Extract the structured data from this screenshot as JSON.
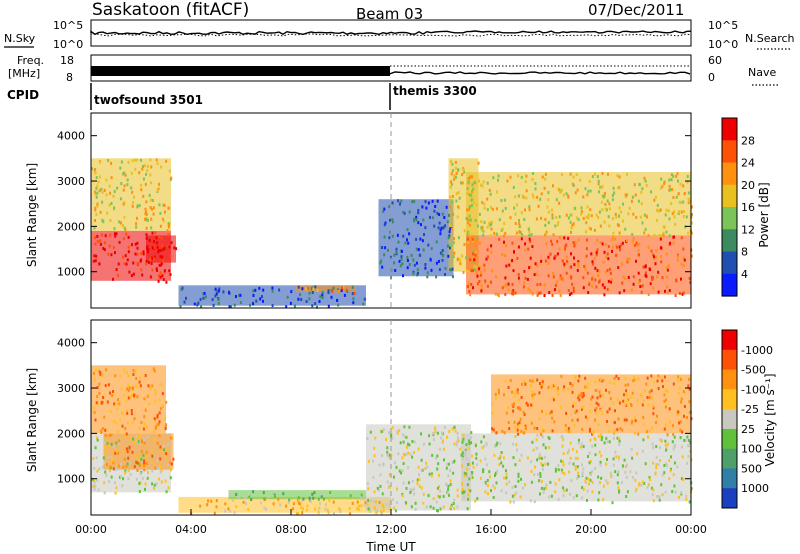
{
  "header": {
    "station": "Saskatoon (fitACF)",
    "beam": "Beam 03",
    "date": "07/Dec/2011"
  },
  "nsky_panel": {
    "left_label": "N.Sky",
    "right_label": "N.Search",
    "left_ticks": [
      "10^5",
      "10^0"
    ],
    "right_ticks": [
      "10^5",
      "10^0"
    ]
  },
  "freq_panel": {
    "left_label_1": "Freq.",
    "left_label_2": "[MHz]",
    "right_label": "Nave",
    "left_ticks": [
      "18",
      "8"
    ],
    "right_ticks": [
      "60",
      "0"
    ]
  },
  "cpid": {
    "label": "CPID",
    "modes": [
      {
        "name": "twofsound 3501",
        "start_hour": 0
      },
      {
        "name": "themis 3300",
        "start_hour": 12
      }
    ]
  },
  "chart_data": [
    {
      "type": "heatmap",
      "id": "power",
      "ylabel": "Slant Range [km]",
      "xlabel": "",
      "xlim": [
        0,
        24
      ],
      "ylim": [
        200,
        4500
      ],
      "y_ticks": [
        1000,
        2000,
        3000,
        4000
      ],
      "colorbar_label": "Power [dB]",
      "colorbar_ticks": [
        "4",
        "8",
        "12",
        "16",
        "20",
        "24",
        "28"
      ],
      "colorbar_colors": [
        "#0a1cff",
        "#1f4fb0",
        "#3c8a60",
        "#7cc45a",
        "#e8c020",
        "#ff9010",
        "#ff5008",
        "#ee0000"
      ],
      "regions": [
        {
          "x": [
            0.0,
            3.2
          ],
          "y": [
            800,
            1900
          ],
          "level": 7
        },
        {
          "x": [
            0.0,
            3.2
          ],
          "y": [
            1900,
            3500
          ],
          "level": 4
        },
        {
          "x": [
            2.2,
            3.4
          ],
          "y": [
            1200,
            1800
          ],
          "level": 7
        },
        {
          "x": [
            3.5,
            11.0
          ],
          "y": [
            250,
            700
          ],
          "level": 1
        },
        {
          "x": [
            8.2,
            10.6
          ],
          "y": [
            550,
            700
          ],
          "level": 5
        },
        {
          "x": [
            11.5,
            14.5
          ],
          "y": [
            900,
            2600
          ],
          "level": 1
        },
        {
          "x": [
            14.3,
            15.5
          ],
          "y": [
            1000,
            3500
          ],
          "level": 4
        },
        {
          "x": [
            15.0,
            24.0
          ],
          "y": [
            500,
            1800
          ],
          "level": 6
        },
        {
          "x": [
            15.0,
            24.0
          ],
          "y": [
            1800,
            3200
          ],
          "level": 4
        }
      ]
    },
    {
      "type": "heatmap",
      "id": "velocity",
      "ylabel": "Slant Range [km]",
      "xlabel": "Time UT",
      "xlim": [
        0,
        24
      ],
      "ylim": [
        200,
        4500
      ],
      "y_ticks": [
        1000,
        2000,
        3000,
        4000
      ],
      "x_ticks": [
        "00:00",
        "04:00",
        "08:00",
        "12:00",
        "16:00",
        "20:00",
        "00:00"
      ],
      "colorbar_label": "Velocity [m s⁻¹]",
      "colorbar_ticks": [
        "1000",
        "500",
        "100",
        "25",
        "-25",
        "-100",
        "-500",
        "-1000"
      ],
      "colorbar_colors": [
        "#1a3fc0",
        "#2f7fa8",
        "#4f9f6a",
        "#5fc23a",
        "#c8c8c0",
        "#ffc020",
        "#ff9010",
        "#ff5008",
        "#ee0000"
      ],
      "regions": [
        {
          "x": [
            0.0,
            3.2
          ],
          "y": [
            700,
            2000
          ],
          "level": 4
        },
        {
          "x": [
            0.5,
            3.3
          ],
          "y": [
            1200,
            2000
          ],
          "level": 6
        },
        {
          "x": [
            0.0,
            3.0
          ],
          "y": [
            2000,
            3500
          ],
          "level": 6
        },
        {
          "x": [
            3.5,
            12.0
          ],
          "y": [
            250,
            600
          ],
          "level": 5
        },
        {
          "x": [
            5.5,
            11.0
          ],
          "y": [
            550,
            750
          ],
          "level": 3
        },
        {
          "x": [
            11.0,
            15.2
          ],
          "y": [
            300,
            2200
          ],
          "level": 4
        },
        {
          "x": [
            14.8,
            24.0
          ],
          "y": [
            500,
            2000
          ],
          "level": 4
        },
        {
          "x": [
            16.0,
            24.0
          ],
          "y": [
            2000,
            3300
          ],
          "level": 6
        }
      ]
    }
  ]
}
